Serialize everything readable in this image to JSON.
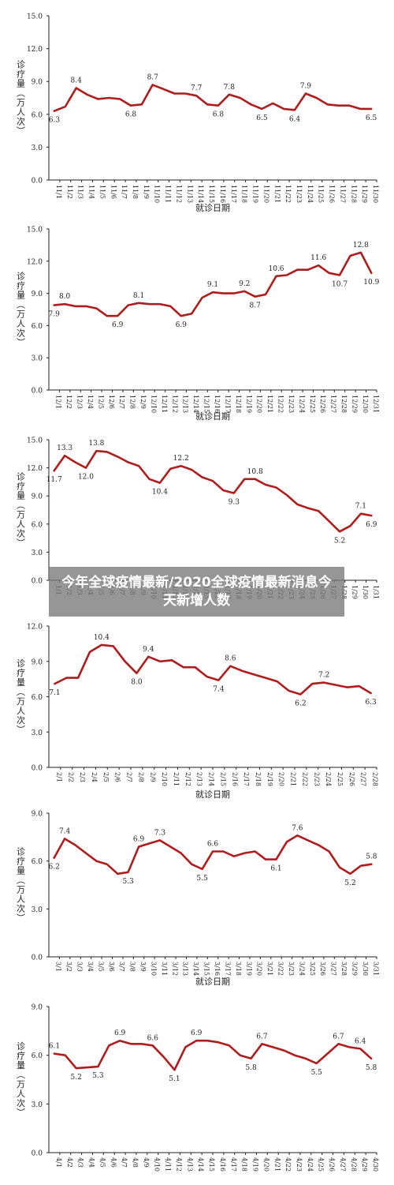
{
  "overlay_title": "今年全球疫情最新/2020全球疫情最新消息今天新增人数",
  "colors": {
    "line": "#b01c1c",
    "axis": "#222222",
    "text": "#222222"
  },
  "chart_data": [
    {
      "type": "line",
      "ylabel": "诊疗量（万人次）",
      "xlabel": "就诊日期",
      "ylim": [
        0,
        15
      ],
      "yticks": [
        "0.0",
        "3.0",
        "6.0",
        "9.0",
        "12.0",
        "15.0"
      ],
      "categories": [
        "11/1",
        "11/2",
        "11/3",
        "11/4",
        "11/5",
        "11/6",
        "11/7",
        "11/8",
        "11/9",
        "11/10",
        "11/11",
        "11/12",
        "11/13",
        "11/14",
        "11/15",
        "11/16",
        "11/17",
        "11/18",
        "11/19",
        "11/20",
        "11/21",
        "11/22",
        "11/23",
        "11/24",
        "11/25",
        "11/26",
        "11/27",
        "11/28",
        "11/29",
        "11/30"
      ],
      "values": [
        6.3,
        6.7,
        8.4,
        7.8,
        7.4,
        7.5,
        7.4,
        6.8,
        6.9,
        8.7,
        8.3,
        7.9,
        7.9,
        7.7,
        6.9,
        6.8,
        7.8,
        7.5,
        6.9,
        6.5,
        7.0,
        6.5,
        6.4,
        7.9,
        7.5,
        6.9,
        6.8,
        6.8,
        6.5,
        6.5
      ],
      "labels": [
        {
          "i": 0,
          "text": "6.3",
          "pos": "below"
        },
        {
          "i": 2,
          "text": "8.4",
          "pos": "above"
        },
        {
          "i": 7,
          "text": "6.8",
          "pos": "below"
        },
        {
          "i": 9,
          "text": "8.7",
          "pos": "above"
        },
        {
          "i": 13,
          "text": "7.7",
          "pos": "above"
        },
        {
          "i": 15,
          "text": "6.8",
          "pos": "below"
        },
        {
          "i": 16,
          "text": "7.8",
          "pos": "above"
        },
        {
          "i": 19,
          "text": "6.5",
          "pos": "below"
        },
        {
          "i": 22,
          "text": "6.4",
          "pos": "below"
        },
        {
          "i": 23,
          "text": "7.9",
          "pos": "above"
        },
        {
          "i": 29,
          "text": "6.5",
          "pos": "below"
        }
      ]
    },
    {
      "type": "line",
      "ylabel": "诊疗量（万人次）",
      "xlabel": "就诊日期",
      "ylim": [
        0,
        15
      ],
      "yticks": [
        "0.0",
        "3.0",
        "6.0",
        "9.0",
        "12.0",
        "15.0"
      ],
      "categories": [
        "12/1",
        "12/2",
        "12/3",
        "12/4",
        "12/5",
        "12/6",
        "12/7",
        "12/8",
        "12/9",
        "12/10",
        "12/11",
        "12/12",
        "12/13",
        "12/14",
        "12/15",
        "12/16",
        "12/17",
        "12/18",
        "12/19",
        "12/20",
        "12/21",
        "12/22",
        "12/23",
        "12/24",
        "12/25",
        "12/26",
        "12/27",
        "12/28",
        "12/29",
        "12/30",
        "12/31"
      ],
      "values": [
        7.9,
        8.0,
        7.8,
        7.8,
        7.6,
        6.9,
        6.9,
        7.9,
        8.1,
        8.0,
        8.0,
        7.8,
        6.9,
        7.1,
        8.6,
        9.1,
        9.0,
        9.0,
        9.2,
        8.7,
        8.9,
        10.6,
        10.7,
        11.2,
        11.2,
        11.6,
        10.9,
        10.7,
        12.5,
        12.8,
        10.9
      ],
      "labels": [
        {
          "i": 0,
          "text": "7.9",
          "pos": "below"
        },
        {
          "i": 1,
          "text": "8.0",
          "pos": "above"
        },
        {
          "i": 6,
          "text": "6.9",
          "pos": "below"
        },
        {
          "i": 8,
          "text": "8.1",
          "pos": "above"
        },
        {
          "i": 12,
          "text": "6.9",
          "pos": "below"
        },
        {
          "i": 15,
          "text": "9.1",
          "pos": "above"
        },
        {
          "i": 18,
          "text": "9.2",
          "pos": "above"
        },
        {
          "i": 19,
          "text": "8.7",
          "pos": "below"
        },
        {
          "i": 21,
          "text": "10.6",
          "pos": "above"
        },
        {
          "i": 25,
          "text": "11.6",
          "pos": "above"
        },
        {
          "i": 27,
          "text": "10.7",
          "pos": "below"
        },
        {
          "i": 29,
          "text": "12.8",
          "pos": "above"
        },
        {
          "i": 30,
          "text": "10.9",
          "pos": "below"
        }
      ]
    },
    {
      "type": "line",
      "ylabel": "诊疗量（万人次）",
      "xlabel": "",
      "ylim": [
        0,
        15
      ],
      "yticks": [
        "0.0",
        "3.0",
        "6.0",
        "9.0",
        "12.0",
        "15.0"
      ],
      "categories": [
        "1/1",
        "1/2",
        "1/3",
        "1/4",
        "1/5",
        "1/6",
        "1/7",
        "1/8",
        "1/9",
        "1/10",
        "1/11",
        "1/12",
        "1/13",
        "1/14",
        "1/15",
        "1/16",
        "1/17",
        "1/18",
        "1/19",
        "1/20",
        "1/21",
        "1/22",
        "1/23",
        "1/24",
        "1/25",
        "1/26",
        "1/27",
        "1/28",
        "1/29",
        "1/30",
        "1/31"
      ],
      "values": [
        11.7,
        13.3,
        12.6,
        12.0,
        13.8,
        13.7,
        13.2,
        12.6,
        12.2,
        10.8,
        10.4,
        11.9,
        12.2,
        11.8,
        11.0,
        10.6,
        9.6,
        9.3,
        10.8,
        10.8,
        10.2,
        9.9,
        9.1,
        8.1,
        7.7,
        7.4,
        6.3,
        5.2,
        5.8,
        7.1,
        6.9
      ],
      "labels": [
        {
          "i": 0,
          "text": "11.7",
          "pos": "below"
        },
        {
          "i": 1,
          "text": "13.3",
          "pos": "above"
        },
        {
          "i": 3,
          "text": "12.0",
          "pos": "below"
        },
        {
          "i": 4,
          "text": "13.8",
          "pos": "above"
        },
        {
          "i": 10,
          "text": "10.4",
          "pos": "below"
        },
        {
          "i": 12,
          "text": "12.2",
          "pos": "above"
        },
        {
          "i": 17,
          "text": "9.3",
          "pos": "below"
        },
        {
          "i": 19,
          "text": "10.8",
          "pos": "above"
        },
        {
          "i": 27,
          "text": "5.2",
          "pos": "below"
        },
        {
          "i": 29,
          "text": "7.1",
          "pos": "above"
        },
        {
          "i": 30,
          "text": "6.9",
          "pos": "below"
        }
      ]
    },
    {
      "type": "line",
      "ylabel": "诊疗量（万人次）",
      "xlabel": "就诊日期",
      "ylim": [
        0,
        12
      ],
      "yticks": [
        "0.0",
        "3.0",
        "6.0",
        "9.0",
        "12.0"
      ],
      "categories": [
        "2/1",
        "2/2",
        "2/3",
        "2/4",
        "2/5",
        "2/6",
        "2/7",
        "2/8",
        "2/9",
        "2/10",
        "2/11",
        "2/12",
        "2/13",
        "2/14",
        "2/15",
        "2/16",
        "2/17",
        "2/18",
        "2/19",
        "2/20",
        "2/21",
        "2/22",
        "2/23",
        "2/24",
        "2/25",
        "2/26",
        "2/27",
        "2/28"
      ],
      "values": [
        7.1,
        7.6,
        7.6,
        9.8,
        10.4,
        10.3,
        9.0,
        8.0,
        9.4,
        9.0,
        9.1,
        8.5,
        8.5,
        7.7,
        7.4,
        8.6,
        8.2,
        7.9,
        7.6,
        7.3,
        6.5,
        6.2,
        7.1,
        7.2,
        7.0,
        6.8,
        6.9,
        6.3
      ],
      "labels": [
        {
          "i": 0,
          "text": "7.1",
          "pos": "below"
        },
        {
          "i": 4,
          "text": "10.4",
          "pos": "above"
        },
        {
          "i": 7,
          "text": "8.0",
          "pos": "below"
        },
        {
          "i": 8,
          "text": "9.4",
          "pos": "above"
        },
        {
          "i": 14,
          "text": "7.4",
          "pos": "below"
        },
        {
          "i": 15,
          "text": "8.6",
          "pos": "above"
        },
        {
          "i": 21,
          "text": "6.2",
          "pos": "below"
        },
        {
          "i": 23,
          "text": "7.2",
          "pos": "above"
        },
        {
          "i": 27,
          "text": "6.3",
          "pos": "below"
        }
      ]
    },
    {
      "type": "line",
      "ylabel": "诊疗量（万人次）",
      "xlabel": "就诊日期",
      "ylim": [
        0,
        9
      ],
      "yticks": [
        "0.0",
        "3.0",
        "6.0",
        "9.0"
      ],
      "categories": [
        "3/1",
        "3/2",
        "3/3",
        "3/4",
        "3/5",
        "3/6",
        "3/7",
        "3/8",
        "3/9",
        "3/10",
        "3/11",
        "3/12",
        "3/13",
        "3/14",
        "3/15",
        "3/16",
        "3/17",
        "3/18",
        "3/19",
        "3/20",
        "3/21",
        "3/22",
        "3/23",
        "3/24",
        "3/25",
        "3/26",
        "3/27",
        "3/28",
        "3/29",
        "3/30",
        "3/31"
      ],
      "values": [
        6.2,
        7.4,
        7.0,
        6.5,
        6.0,
        5.8,
        5.2,
        5.3,
        6.9,
        7.1,
        7.3,
        6.9,
        6.5,
        5.8,
        5.5,
        6.6,
        6.6,
        6.3,
        6.5,
        6.6,
        6.1,
        6.1,
        7.2,
        7.6,
        7.3,
        7.0,
        6.6,
        5.6,
        5.2,
        5.7,
        5.8
      ],
      "labels": [
        {
          "i": 0,
          "text": "6.2",
          "pos": "below"
        },
        {
          "i": 1,
          "text": "7.4",
          "pos": "above"
        },
        {
          "i": 7,
          "text": "5.3",
          "pos": "below"
        },
        {
          "i": 8,
          "text": "6.9",
          "pos": "above"
        },
        {
          "i": 10,
          "text": "7.3",
          "pos": "above"
        },
        {
          "i": 14,
          "text": "5.5",
          "pos": "below"
        },
        {
          "i": 15,
          "text": "6.6",
          "pos": "above"
        },
        {
          "i": 21,
          "text": "6.1",
          "pos": "below"
        },
        {
          "i": 23,
          "text": "7.6",
          "pos": "above"
        },
        {
          "i": 28,
          "text": "5.2",
          "pos": "below"
        },
        {
          "i": 30,
          "text": "5.8",
          "pos": "above"
        }
      ]
    },
    {
      "type": "line",
      "ylabel": "诊疗量（万人次）",
      "xlabel": "",
      "ylim": [
        0,
        9
      ],
      "yticks": [
        "0.0",
        "3.0",
        "6.0",
        "9.0"
      ],
      "categories": [
        "4/1",
        "4/2",
        "4/3",
        "4/4",
        "4/5",
        "4/6",
        "4/7",
        "4/8",
        "4/9",
        "4/10",
        "4/11",
        "4/12",
        "4/13",
        "4/14",
        "4/15",
        "4/16",
        "4/17",
        "4/18",
        "4/19",
        "4/20",
        "4/21",
        "4/22",
        "4/23",
        "4/24",
        "4/25",
        "4/26",
        "4/27",
        "4/28",
        "4/29",
        "4/30"
      ],
      "values": [
        6.1,
        6.0,
        5.2,
        5.25,
        5.3,
        6.6,
        6.9,
        6.7,
        6.7,
        6.6,
        5.9,
        5.1,
        6.5,
        6.9,
        6.9,
        6.8,
        6.6,
        6.0,
        5.8,
        6.7,
        6.5,
        6.3,
        6.0,
        5.8,
        5.5,
        6.1,
        6.7,
        6.5,
        6.4,
        5.8
      ],
      "labels": [
        {
          "i": 0,
          "text": "6.1",
          "pos": "above"
        },
        {
          "i": 2,
          "text": "5.2",
          "pos": "below"
        },
        {
          "i": 4,
          "text": "5.3",
          "pos": "below"
        },
        {
          "i": 6,
          "text": "6.9",
          "pos": "above"
        },
        {
          "i": 9,
          "text": "6.6",
          "pos": "above"
        },
        {
          "i": 11,
          "text": "5.1",
          "pos": "below"
        },
        {
          "i": 13,
          "text": "6.9",
          "pos": "above"
        },
        {
          "i": 18,
          "text": "5.8",
          "pos": "below"
        },
        {
          "i": 19,
          "text": "6.7",
          "pos": "above"
        },
        {
          "i": 24,
          "text": "5.5",
          "pos": "below"
        },
        {
          "i": 26,
          "text": "6.7",
          "pos": "above"
        },
        {
          "i": 28,
          "text": "6.4",
          "pos": "above"
        },
        {
          "i": 29,
          "text": "5.8",
          "pos": "below"
        }
      ]
    }
  ]
}
